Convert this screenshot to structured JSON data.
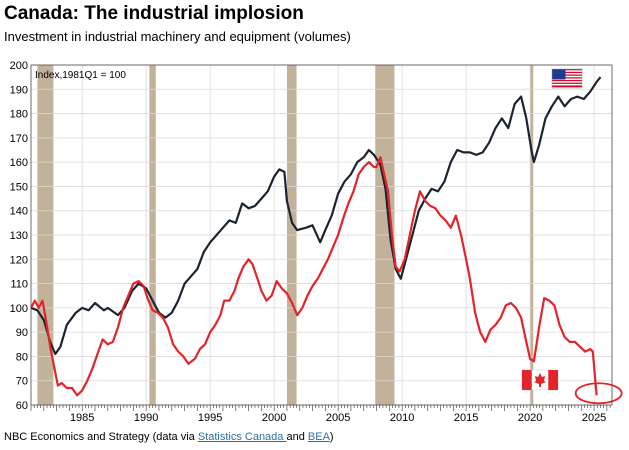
{
  "header": {
    "title": "Canada: The industrial implosion",
    "subtitle": "Investment in industrial machinery and equipment (volumes)"
  },
  "footer": {
    "prefix": "NBC Economics and Strategy (data via ",
    "link1": "Statistics Canada ",
    "middle": "and ",
    "link2": "BEA",
    "suffix": ")"
  },
  "chart_data": {
    "type": "line",
    "title": "Canada: The industrial implosion",
    "subtitle": "Investment in industrial machinery and equipment (volumes)",
    "xlabel": "",
    "ylabel": "",
    "annotation": "Index,1981Q1 = 100",
    "xlim": [
      1981,
      2026.4
    ],
    "ylim": [
      60,
      200
    ],
    "xticks": [
      1985,
      1990,
      1995,
      2000,
      2005,
      2010,
      2015,
      2020,
      2025
    ],
    "yticks": [
      60,
      70,
      80,
      90,
      100,
      110,
      120,
      130,
      140,
      150,
      160,
      170,
      180,
      190,
      200
    ],
    "grid": true,
    "legend": "flag icons (US flag top-right next to US series end, Canadian flag bottom-right next to Canada series end)",
    "recession_shading_color": "#c2b29a",
    "recessions": [
      [
        1981.5,
        1982.75
      ],
      [
        1990.25,
        1990.75
      ],
      [
        2001.0,
        2001.75
      ],
      [
        2007.9,
        2009.4
      ],
      [
        2020.0,
        2020.25
      ]
    ],
    "highlight_circle": {
      "x": 2025.2,
      "y": 64
    },
    "series": [
      {
        "key": "us",
        "color": "#1b2431",
        "points": [
          [
            1981.0,
            100
          ],
          [
            1981.5,
            99
          ],
          [
            1982.0,
            95
          ],
          [
            1982.5,
            86
          ],
          [
            1982.9,
            81
          ],
          [
            1983.3,
            84
          ],
          [
            1983.8,
            93
          ],
          [
            1984.5,
            98
          ],
          [
            1985.0,
            100
          ],
          [
            1985.5,
            99
          ],
          [
            1986.0,
            102
          ],
          [
            1986.7,
            99
          ],
          [
            1987.0,
            100
          ],
          [
            1987.8,
            97
          ],
          [
            1988.3,
            100
          ],
          [
            1988.9,
            107
          ],
          [
            1989.4,
            110
          ],
          [
            1990.0,
            108
          ],
          [
            1990.5,
            103
          ],
          [
            1991.0,
            98
          ],
          [
            1991.5,
            96
          ],
          [
            1992.0,
            98
          ],
          [
            1992.5,
            103
          ],
          [
            1993.0,
            110
          ],
          [
            1993.5,
            113
          ],
          [
            1994.0,
            116
          ],
          [
            1994.5,
            123
          ],
          [
            1995.0,
            127
          ],
          [
            1995.5,
            130
          ],
          [
            1996.0,
            133
          ],
          [
            1996.5,
            136
          ],
          [
            1997.0,
            135
          ],
          [
            1997.5,
            143
          ],
          [
            1998.0,
            141
          ],
          [
            1998.5,
            142
          ],
          [
            1999.0,
            145
          ],
          [
            1999.5,
            148
          ],
          [
            2000.0,
            154
          ],
          [
            2000.4,
            157
          ],
          [
            2000.8,
            156
          ],
          [
            2001.0,
            144
          ],
          [
            2001.4,
            135
          ],
          [
            2001.8,
            132
          ],
          [
            2002.5,
            133
          ],
          [
            2003.0,
            134
          ],
          [
            2003.6,
            127
          ],
          [
            2004.0,
            132
          ],
          [
            2004.5,
            138
          ],
          [
            2005.0,
            147
          ],
          [
            2005.5,
            152
          ],
          [
            2006.0,
            155
          ],
          [
            2006.5,
            160
          ],
          [
            2007.0,
            162
          ],
          [
            2007.4,
            165
          ],
          [
            2007.8,
            163
          ],
          [
            2008.3,
            159
          ],
          [
            2008.7,
            149
          ],
          [
            2009.1,
            128
          ],
          [
            2009.5,
            116
          ],
          [
            2009.9,
            112
          ],
          [
            2010.3,
            120
          ],
          [
            2010.8,
            130
          ],
          [
            2011.3,
            140
          ],
          [
            2011.8,
            145
          ],
          [
            2012.3,
            149
          ],
          [
            2012.8,
            148
          ],
          [
            2013.3,
            152
          ],
          [
            2013.8,
            160
          ],
          [
            2014.3,
            165
          ],
          [
            2014.8,
            164
          ],
          [
            2015.3,
            164
          ],
          [
            2015.8,
            163
          ],
          [
            2016.3,
            164
          ],
          [
            2016.8,
            168
          ],
          [
            2017.3,
            174
          ],
          [
            2017.8,
            178
          ],
          [
            2018.3,
            174
          ],
          [
            2018.8,
            184
          ],
          [
            2019.3,
            187
          ],
          [
            2019.7,
            178
          ],
          [
            2020.1,
            165
          ],
          [
            2020.3,
            160
          ],
          [
            2020.7,
            167
          ],
          [
            2021.2,
            178
          ],
          [
            2021.7,
            183
          ],
          [
            2022.2,
            187
          ],
          [
            2022.7,
            183
          ],
          [
            2023.2,
            186
          ],
          [
            2023.7,
            187
          ],
          [
            2024.2,
            186
          ],
          [
            2024.7,
            189
          ],
          [
            2025.2,
            193
          ],
          [
            2025.5,
            195
          ]
        ]
      },
      {
        "key": "canada",
        "color": "#e3242b",
        "points": [
          [
            1981.0,
            100
          ],
          [
            1981.3,
            103
          ],
          [
            1981.6,
            100
          ],
          [
            1981.9,
            103
          ],
          [
            1982.2,
            94
          ],
          [
            1982.5,
            84
          ],
          [
            1982.8,
            76
          ],
          [
            1983.1,
            68
          ],
          [
            1983.4,
            69
          ],
          [
            1983.8,
            67
          ],
          [
            1984.2,
            67
          ],
          [
            1984.6,
            64
          ],
          [
            1985.0,
            66
          ],
          [
            1985.4,
            70
          ],
          [
            1985.8,
            75
          ],
          [
            1986.2,
            81
          ],
          [
            1986.6,
            87
          ],
          [
            1987.0,
            85
          ],
          [
            1987.4,
            86
          ],
          [
            1987.8,
            92
          ],
          [
            1988.2,
            100
          ],
          [
            1988.6,
            105
          ],
          [
            1989.0,
            110
          ],
          [
            1989.4,
            111
          ],
          [
            1989.8,
            109
          ],
          [
            1990.1,
            104
          ],
          [
            1990.5,
            99
          ],
          [
            1990.9,
            98
          ],
          [
            1991.3,
            96
          ],
          [
            1991.7,
            92
          ],
          [
            1992.1,
            85
          ],
          [
            1992.5,
            82
          ],
          [
            1992.9,
            80
          ],
          [
            1993.3,
            77
          ],
          [
            1993.8,
            79
          ],
          [
            1994.2,
            83
          ],
          [
            1994.6,
            85
          ],
          [
            1995.0,
            90
          ],
          [
            1995.4,
            93
          ],
          [
            1995.8,
            97
          ],
          [
            1996.1,
            103
          ],
          [
            1996.5,
            103
          ],
          [
            1996.9,
            107
          ],
          [
            1997.2,
            112
          ],
          [
            1997.6,
            117
          ],
          [
            1998.0,
            120
          ],
          [
            1998.3,
            118
          ],
          [
            1998.7,
            112
          ],
          [
            1999.0,
            107
          ],
          [
            1999.4,
            103
          ],
          [
            1999.8,
            105
          ],
          [
            2000.2,
            111
          ],
          [
            2000.6,
            108
          ],
          [
            2001.0,
            106
          ],
          [
            2001.4,
            102
          ],
          [
            2001.8,
            97
          ],
          [
            2002.2,
            100
          ],
          [
            2002.6,
            105
          ],
          [
            2003.0,
            109
          ],
          [
            2003.4,
            112
          ],
          [
            2003.8,
            116
          ],
          [
            2004.2,
            120
          ],
          [
            2004.6,
            125
          ],
          [
            2005.0,
            130
          ],
          [
            2005.4,
            137
          ],
          [
            2005.8,
            143
          ],
          [
            2006.2,
            148
          ],
          [
            2006.6,
            155
          ],
          [
            2007.0,
            158
          ],
          [
            2007.4,
            160
          ],
          [
            2007.8,
            158
          ],
          [
            2008.0,
            158
          ],
          [
            2008.3,
            162
          ],
          [
            2008.6,
            155
          ],
          [
            2008.9,
            148
          ],
          [
            2009.2,
            130
          ],
          [
            2009.5,
            117
          ],
          [
            2009.8,
            115
          ],
          [
            2010.2,
            120
          ],
          [
            2010.6,
            130
          ],
          [
            2011.0,
            140
          ],
          [
            2011.4,
            148
          ],
          [
            2011.8,
            144
          ],
          [
            2012.2,
            142
          ],
          [
            2012.6,
            141
          ],
          [
            2013.0,
            138
          ],
          [
            2013.4,
            136
          ],
          [
            2013.8,
            133
          ],
          [
            2014.2,
            138
          ],
          [
            2014.6,
            130
          ],
          [
            2015.0,
            120
          ],
          [
            2015.3,
            112
          ],
          [
            2015.7,
            98
          ],
          [
            2016.1,
            90
          ],
          [
            2016.5,
            86
          ],
          [
            2016.9,
            91
          ],
          [
            2017.3,
            93
          ],
          [
            2017.7,
            96
          ],
          [
            2018.1,
            101
          ],
          [
            2018.5,
            102
          ],
          [
            2018.9,
            100
          ],
          [
            2019.3,
            96
          ],
          [
            2019.7,
            86
          ],
          [
            2020.0,
            79
          ],
          [
            2020.3,
            78
          ],
          [
            2020.7,
            92
          ],
          [
            2021.1,
            104
          ],
          [
            2021.5,
            103
          ],
          [
            2021.9,
            101
          ],
          [
            2022.3,
            93
          ],
          [
            2022.7,
            88
          ],
          [
            2023.1,
            86
          ],
          [
            2023.5,
            86
          ],
          [
            2023.9,
            84
          ],
          [
            2024.3,
            82
          ],
          [
            2024.7,
            83
          ],
          [
            2024.9,
            82
          ],
          [
            2025.2,
            64
          ]
        ]
      }
    ]
  }
}
